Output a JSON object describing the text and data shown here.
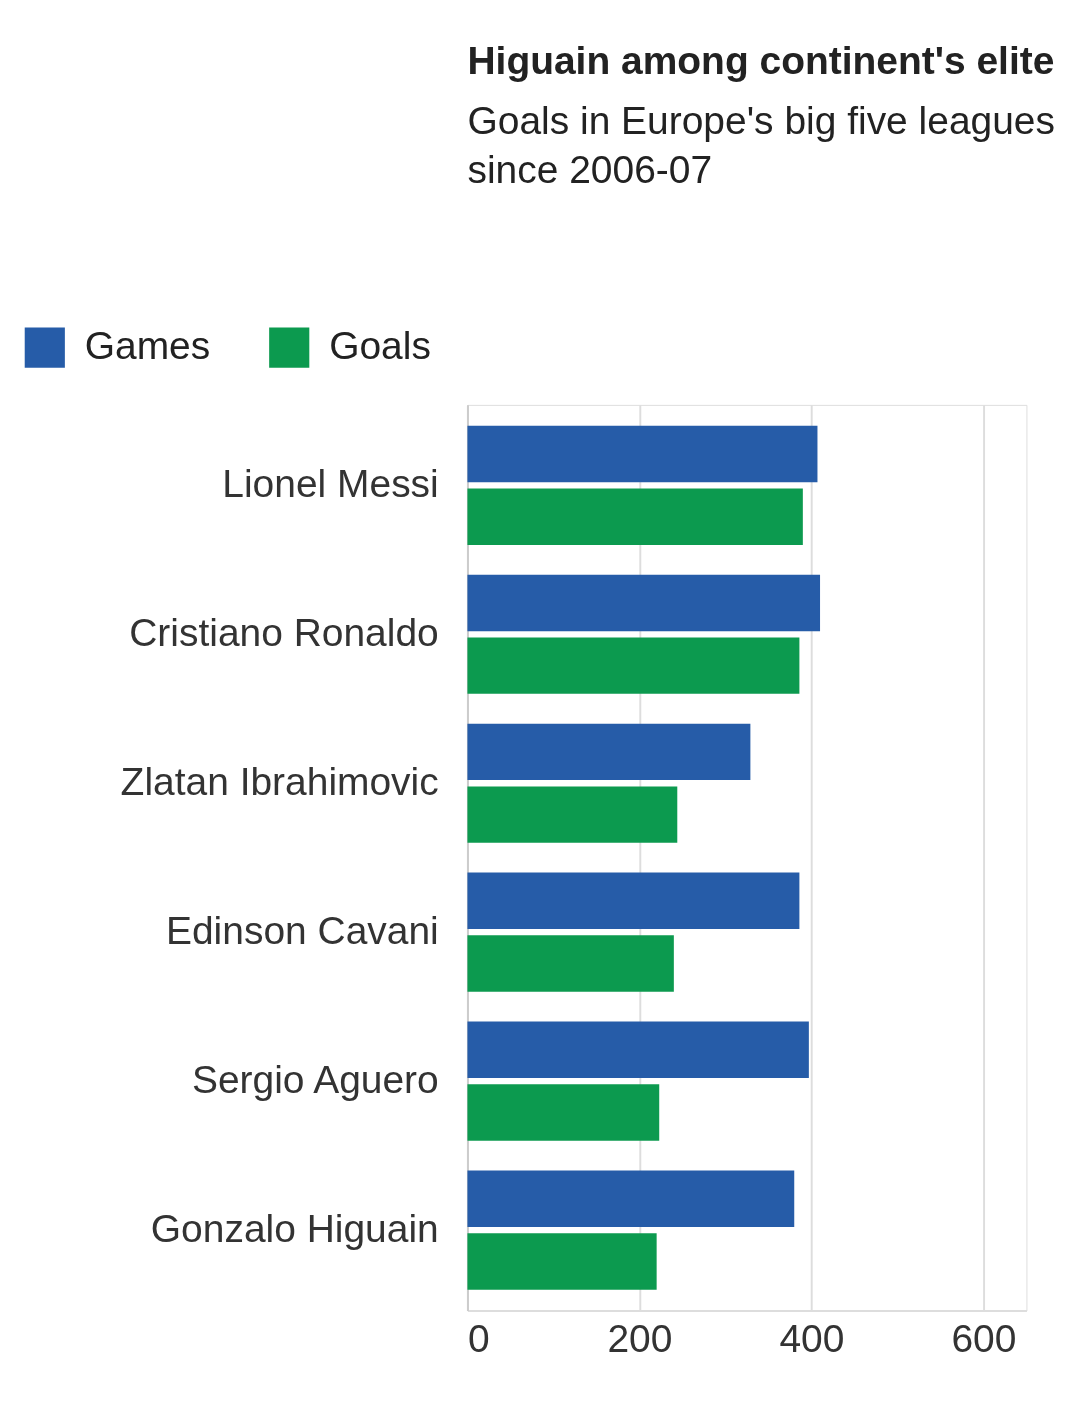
{
  "chart_data": {
    "type": "bar",
    "orientation": "horizontal",
    "title": "Higuain among continent's elite",
    "subtitle": "Goals in Europe's big five leagues since 2006-07",
    "categories": [
      "Lionel Messi",
      "Cristiano Ronaldo",
      "Zlatan Ibrahimovic",
      "Edinson Cavani",
      "Sergio Aguero",
      "Gonzalo Higuain"
    ],
    "series": [
      {
        "name": "Games",
        "color": "#265ca8",
        "values": [
          407,
          410,
          329,
          386,
          397,
          380
        ]
      },
      {
        "name": "Goals",
        "color": "#0c9a4f",
        "values": [
          390,
          386,
          244,
          240,
          223,
          220
        ]
      }
    ],
    "xlim": [
      0,
      650
    ],
    "xticks": [
      0,
      200,
      400,
      600
    ],
    "grid": "x",
    "legend": "top left"
  }
}
